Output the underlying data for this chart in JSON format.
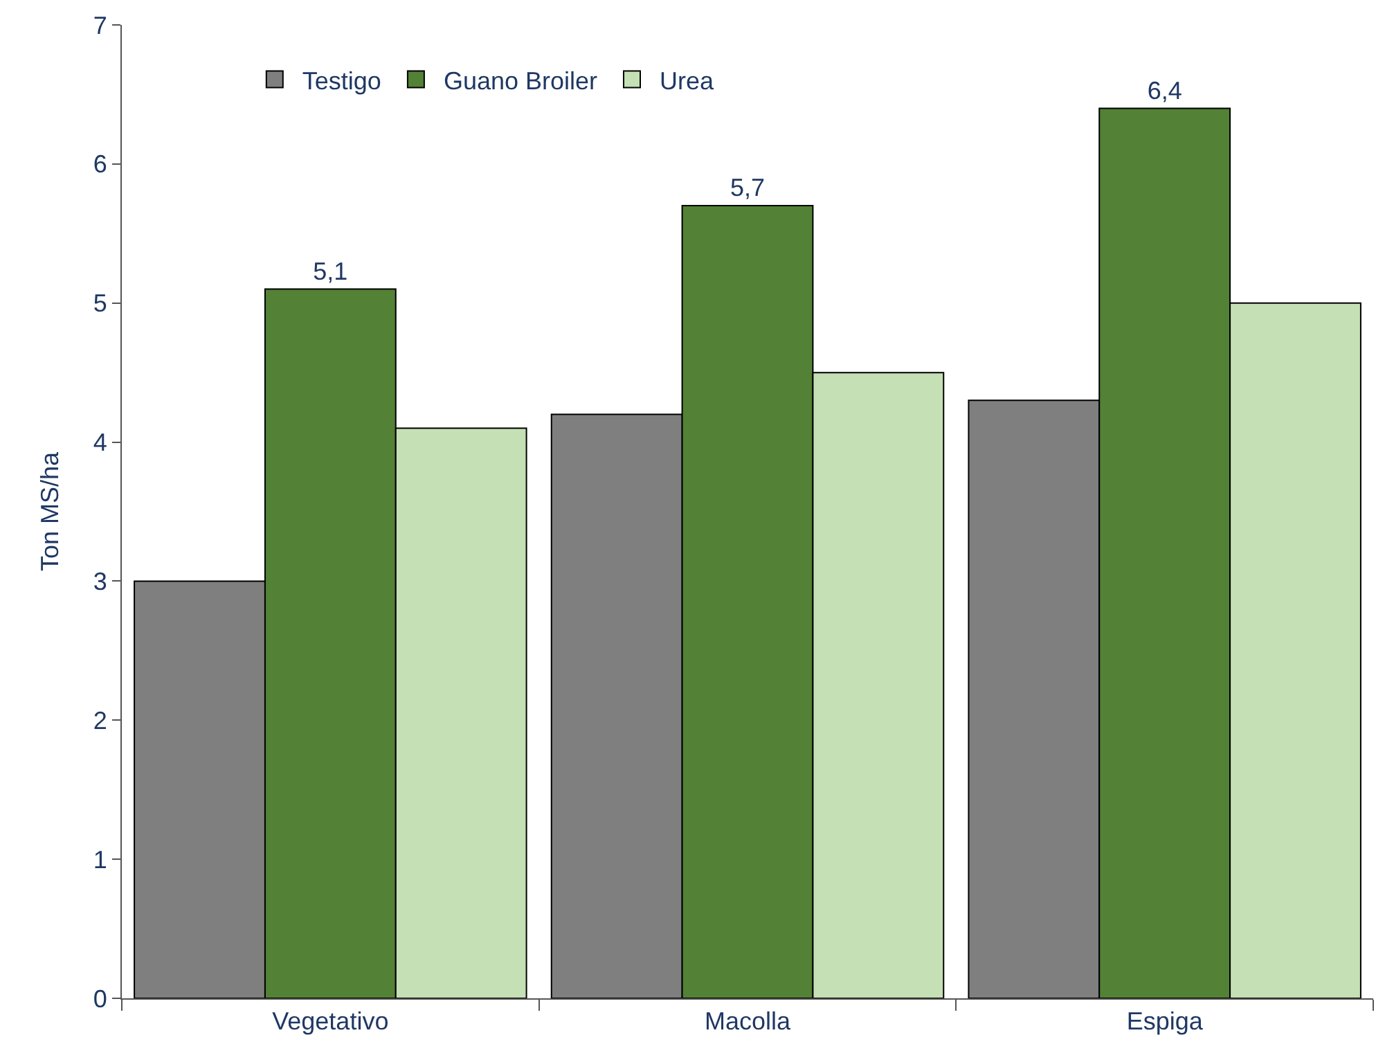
{
  "chart_data": {
    "type": "bar",
    "ylabel": "Ton MS/ha",
    "categories": [
      "Vegetativo",
      "Macolla",
      "Espiga"
    ],
    "series": [
      {
        "name": "Testigo",
        "color": "#7f7f7f",
        "values": [
          3.0,
          4.2,
          4.3
        ]
      },
      {
        "name": "Guano Broiler",
        "color": "#538135",
        "values": [
          5.1,
          5.7,
          6.4
        ],
        "value_labels": [
          "5,1",
          "5,7",
          "6,4"
        ]
      },
      {
        "name": "Urea",
        "color": "#c5e0b4",
        "values": [
          4.1,
          4.5,
          5.0
        ]
      }
    ],
    "ylim": [
      0,
      7
    ],
    "yticks": [
      0,
      1,
      2,
      3,
      4,
      5,
      6,
      7
    ],
    "grid": false,
    "legend": "top left"
  }
}
